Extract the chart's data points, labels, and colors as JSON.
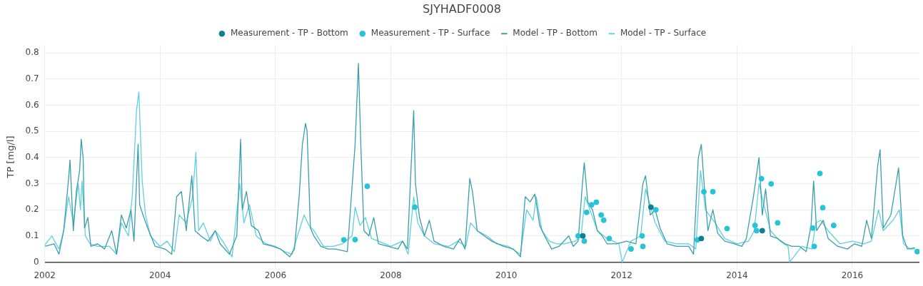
{
  "chart_data": {
    "type": "line",
    "title": "SJYHADF0008",
    "ylabel": "TP [mg/l]",
    "xlim": [
      "2002",
      "2017-03-01"
    ],
    "xticks": [
      "2002",
      "2004",
      "2006",
      "2008",
      "2010",
      "2012",
      "2014",
      "2016"
    ],
    "ylim": [
      -0.025,
      0.83
    ],
    "yticks": [
      0,
      0.1,
      0.2,
      0.3,
      0.4,
      0.5,
      0.6,
      0.7,
      0.8
    ],
    "grid": true,
    "legend": "top",
    "series": [
      {
        "name": "Measurement - TP - Bottom",
        "type": "scatter",
        "marker": "circle",
        "color": "#0e7f8c",
        "x": [
          "2011-05-01",
          "2012-07-05",
          "2013-05-20",
          "2014-06-10"
        ],
        "values": [
          0.1,
          0.21,
          0.09,
          0.12
        ]
      },
      {
        "name": "Measurement - TP - Surface",
        "type": "scatter",
        "marker": "circle",
        "color": "#25c4d8",
        "x": [
          "2007-03-10",
          "2007-05-20",
          "2007-08-05",
          "2008-06-01",
          "2011-04-01",
          "2011-05-10",
          "2011-05-25",
          "2011-06-25",
          "2011-07-25",
          "2011-08-25",
          "2011-09-10",
          "2011-10-15",
          "2012-03-01",
          "2012-05-10",
          "2012-05-15",
          "2012-08-05",
          "2013-04-25",
          "2013-06-05",
          "2013-08-01",
          "2013-10-30",
          "2014-04-25",
          "2014-05-05",
          "2014-06-05",
          "2014-08-05",
          "2014-09-15",
          "2015-04-25",
          "2015-05-05",
          "2015-06-10",
          "2015-06-28",
          "2015-09-05",
          "2017-02-15"
        ],
        "values": [
          0.085,
          0.086,
          0.29,
          0.21,
          0.1,
          0.08,
          0.19,
          0.219,
          0.229,
          0.18,
          0.16,
          0.09,
          0.05,
          0.1,
          0.06,
          0.2,
          0.085,
          0.269,
          0.269,
          0.128,
          0.14,
          0.12,
          0.319,
          0.299,
          0.15,
          0.13,
          0.06,
          0.339,
          0.208,
          0.14,
          0.04
        ]
      },
      {
        "name": "Model - TP - Bottom",
        "type": "line",
        "marker": "none",
        "color": "#3a9faa",
        "x": [
          "2002-01-01",
          "2002-02-01",
          "2002-03-01",
          "2002-04-01",
          "2002-05-01",
          "2002-06-01",
          "2002-06-10",
          "2002-07-01",
          "2002-07-20",
          "2002-08-10",
          "2002-08-20",
          "2002-09-01",
          "2002-09-10",
          "2002-10-01",
          "2002-10-20",
          "2002-12-01",
          "2003-01-15",
          "2003-03-01",
          "2003-04-01",
          "2003-05-01",
          "2003-06-01",
          "2003-07-01",
          "2003-07-20",
          "2003-08-15",
          "2003-08-25",
          "2003-09-15",
          "2003-10-15",
          "2003-12-01",
          "2004-02-01",
          "2004-03-15",
          "2004-04-15",
          "2004-05-15",
          "2004-06-15",
          "2004-07-20",
          "2004-08-10",
          "2004-09-15",
          "2004-11-01",
          "2004-12-15",
          "2005-01-15",
          "2005-03-15",
          "2005-05-01",
          "2005-05-25",
          "2005-06-05",
          "2005-07-01",
          "2005-08-01",
          "2005-09-15",
          "2005-10-15",
          "2005-12-15",
          "2006-02-01",
          "2006-04-01",
          "2006-05-01",
          "2006-06-01",
          "2006-06-20",
          "2006-07-10",
          "2006-07-20",
          "2006-08-10",
          "2006-09-01",
          "2006-10-15",
          "2006-12-01",
          "2007-01-15",
          "2007-04-01",
          "2007-05-01",
          "2007-05-20",
          "2007-06-10",
          "2007-06-25",
          "2007-07-15",
          "2007-08-15",
          "2007-09-15",
          "2007-10-15",
          "2007-12-15",
          "2008-02-15",
          "2008-03-15",
          "2008-04-15",
          "2008-05-15",
          "2008-05-25",
          "2008-06-05",
          "2008-07-01",
          "2008-08-01",
          "2008-09-01",
          "2008-10-01",
          "2008-12-01",
          "2009-02-01",
          "2009-03-15",
          "2009-04-15",
          "2009-05-15",
          "2009-06-01",
          "2009-07-01",
          "2009-08-15",
          "2009-10-01",
          "2009-12-15",
          "2010-02-15",
          "2010-04-01",
          "2010-05-01",
          "2010-06-01",
          "2010-07-01",
          "2010-08-01",
          "2010-09-01",
          "2010-10-15",
          "2010-12-01",
          "2011-02-01",
          "2011-03-01",
          "2011-04-01",
          "2011-05-01",
          "2011-05-10",
          "2011-06-01",
          "2011-07-01",
          "2011-08-01",
          "2011-09-01",
          "2011-10-01",
          "2011-12-01",
          "2012-02-01",
          "2012-04-01",
          "2012-05-15",
          "2012-06-01",
          "2012-07-01",
          "2012-08-01",
          "2012-09-01",
          "2012-10-15",
          "2012-12-15",
          "2013-03-01",
          "2013-04-01",
          "2013-05-01",
          "2013-05-20",
          "2013-06-10",
          "2013-07-01",
          "2013-08-01",
          "2013-09-01",
          "2013-10-15",
          "2013-12-15",
          "2014-02-01",
          "2014-03-01",
          "2014-04-15",
          "2014-05-20",
          "2014-06-10",
          "2014-07-01",
          "2014-08-01",
          "2014-09-15",
          "2014-11-01",
          "2014-12-15",
          "2015-02-01",
          "2015-03-15",
          "2015-04-15",
          "2015-05-01",
          "2015-05-20",
          "2015-07-01",
          "2015-08-01",
          "2015-10-01",
          "2015-12-01",
          "2016-01-15",
          "2016-03-01",
          "2016-04-01",
          "2016-05-01",
          "2016-06-10",
          "2016-06-25",
          "2016-07-15",
          "2016-09-01",
          "2016-10-20",
          "2016-11-15",
          "2016-12-15",
          "2017-02-01"
        ],
        "values": [
          0.06,
          0.065,
          0.07,
          0.03,
          0.12,
          0.32,
          0.39,
          0.12,
          0.27,
          0.35,
          0.47,
          0.4,
          0.13,
          0.17,
          0.06,
          0.07,
          0.05,
          0.12,
          0.03,
          0.18,
          0.13,
          0.2,
          0.08,
          0.45,
          0.22,
          0.18,
          0.13,
          0.06,
          0.05,
          0.03,
          0.25,
          0.27,
          0.12,
          0.33,
          0.12,
          0.1,
          0.08,
          0.12,
          0.07,
          0.03,
          0.1,
          0.47,
          0.2,
          0.27,
          0.14,
          0.12,
          0.07,
          0.06,
          0.05,
          0.02,
          0.05,
          0.26,
          0.45,
          0.53,
          0.5,
          0.13,
          0.1,
          0.06,
          0.05,
          0.05,
          0.04,
          0.29,
          0.45,
          0.76,
          0.45,
          0.12,
          0.1,
          0.17,
          0.07,
          0.06,
          0.05,
          0.08,
          0.05,
          0.45,
          0.58,
          0.3,
          0.17,
          0.1,
          0.16,
          0.08,
          0.06,
          0.05,
          0.09,
          0.05,
          0.32,
          0.27,
          0.12,
          0.1,
          0.08,
          0.06,
          0.05,
          0.02,
          0.25,
          0.23,
          0.26,
          0.14,
          0.1,
          0.05,
          0.06,
          0.1,
          0.06,
          0.08,
          0.32,
          0.38,
          0.23,
          0.2,
          0.12,
          0.1,
          0.07,
          0.07,
          0.08,
          0.07,
          0.3,
          0.33,
          0.18,
          0.2,
          0.13,
          0.07,
          0.06,
          0.06,
          0.03,
          0.4,
          0.45,
          0.27,
          0.12,
          0.2,
          0.11,
          0.08,
          0.07,
          0.06,
          0.09,
          0.25,
          0.4,
          0.18,
          0.28,
          0.1,
          0.09,
          0.07,
          0.06,
          0.06,
          0.04,
          0.14,
          0.31,
          0.12,
          0.16,
          0.09,
          0.06,
          0.05,
          0.07,
          0.06,
          0.16,
          0.09,
          0.37,
          0.43,
          0.13,
          0.18,
          0.36,
          0.1,
          0.05,
          0.055
        ]
      },
      {
        "name": "Model - TP - Surface",
        "type": "line",
        "marker": "none",
        "color": "#5fd0e0",
        "x": [
          "2002-01-01",
          "2002-02-15",
          "2002-04-01",
          "2002-05-01",
          "2002-06-01",
          "2002-07-01",
          "2002-08-01",
          "2002-08-15",
          "2002-08-25",
          "2002-09-15",
          "2002-10-15",
          "2002-12-01",
          "2003-02-15",
          "2003-04-01",
          "2003-05-01",
          "2003-06-15",
          "2003-07-10",
          "2003-08-05",
          "2003-08-20",
          "2003-08-28",
          "2003-09-10",
          "2003-10-01",
          "2003-11-01",
          "2004-01-01",
          "2004-02-15",
          "2004-04-01",
          "2004-05-01",
          "2004-06-15",
          "2004-07-25",
          "2004-08-15",
          "2004-09-01",
          "2004-10-01",
          "2004-11-15",
          "2004-12-15",
          "2005-02-01",
          "2005-04-01",
          "2005-05-20",
          "2005-06-15",
          "2005-07-20",
          "2005-09-01",
          "2005-11-01",
          "2006-01-01",
          "2006-03-01",
          "2006-04-15",
          "2006-05-20",
          "2006-07-01",
          "2006-08-01",
          "2006-09-01",
          "2006-11-01",
          "2007-01-01",
          "2007-03-01",
          "2007-05-01",
          "2007-05-20",
          "2007-06-20",
          "2007-07-25",
          "2007-09-01",
          "2007-10-15",
          "2008-01-01",
          "2008-03-15",
          "2008-04-20",
          "2008-05-25",
          "2008-06-20",
          "2008-08-01",
          "2008-10-01",
          "2009-01-01",
          "2009-03-01",
          "2009-04-20",
          "2009-05-20",
          "2009-07-01",
          "2009-09-01",
          "2009-11-01",
          "2010-01-15",
          "2010-04-01",
          "2010-05-10",
          "2010-06-20",
          "2010-07-10",
          "2010-08-15",
          "2010-10-01",
          "2010-11-15",
          "2011-01-01",
          "2011-03-15",
          "2011-04-20",
          "2011-05-15",
          "2011-06-15",
          "2011-08-01",
          "2011-10-01",
          "2011-12-15",
          "2012-01-05",
          "2012-03-01",
          "2012-05-01",
          "2012-06-01",
          "2012-08-01",
          "2012-10-01",
          "2012-12-15",
          "2013-03-01",
          "2013-04-15",
          "2013-05-15",
          "2013-06-15",
          "2013-08-15",
          "2013-10-15",
          "2014-01-01",
          "2014-03-15",
          "2014-04-20",
          "2014-05-20",
          "2014-06-20",
          "2014-08-01",
          "2014-10-01",
          "2014-11-20",
          "2014-12-01",
          "2015-02-15",
          "2015-04-20",
          "2015-05-15",
          "2015-06-15",
          "2015-08-01",
          "2015-10-15",
          "2016-01-01",
          "2016-03-15",
          "2016-05-01",
          "2016-06-15",
          "2016-07-15",
          "2016-09-15",
          "2016-10-25",
          "2016-11-20",
          "2017-01-01",
          "2017-02-01"
        ],
        "values": [
          0.065,
          0.1,
          0.05,
          0.12,
          0.25,
          0.15,
          0.3,
          0.2,
          0.31,
          0.1,
          0.07,
          0.06,
          0.06,
          0.03,
          0.15,
          0.1,
          0.26,
          0.58,
          0.65,
          0.52,
          0.31,
          0.18,
          0.1,
          0.06,
          0.08,
          0.04,
          0.18,
          0.15,
          0.25,
          0.42,
          0.12,
          0.15,
          0.08,
          0.12,
          0.08,
          0.02,
          0.3,
          0.15,
          0.22,
          0.1,
          0.07,
          0.06,
          0.04,
          0.03,
          0.1,
          0.18,
          0.14,
          0.12,
          0.06,
          0.06,
          0.07,
          0.1,
          0.21,
          0.14,
          0.17,
          0.09,
          0.08,
          0.06,
          0.08,
          0.03,
          0.25,
          0.15,
          0.1,
          0.07,
          0.06,
          0.08,
          0.06,
          0.15,
          0.12,
          0.1,
          0.07,
          0.06,
          0.03,
          0.2,
          0.16,
          0.25,
          0.12,
          0.08,
          0.07,
          0.07,
          0.08,
          0.1,
          0.25,
          0.2,
          0.12,
          0.09,
          0.07,
          0.0,
          0.08,
          0.1,
          0.28,
          0.15,
          0.08,
          0.07,
          0.07,
          0.05,
          0.35,
          0.2,
          0.15,
          0.09,
          0.07,
          0.08,
          0.12,
          0.3,
          0.22,
          0.12,
          0.08,
          0.06,
          0.0,
          0.06,
          0.05,
          0.15,
          0.16,
          0.12,
          0.07,
          0.08,
          0.07,
          0.08,
          0.2,
          0.12,
          0.16,
          0.2,
          0.07,
          0.05,
          0.05
        ]
      }
    ]
  }
}
